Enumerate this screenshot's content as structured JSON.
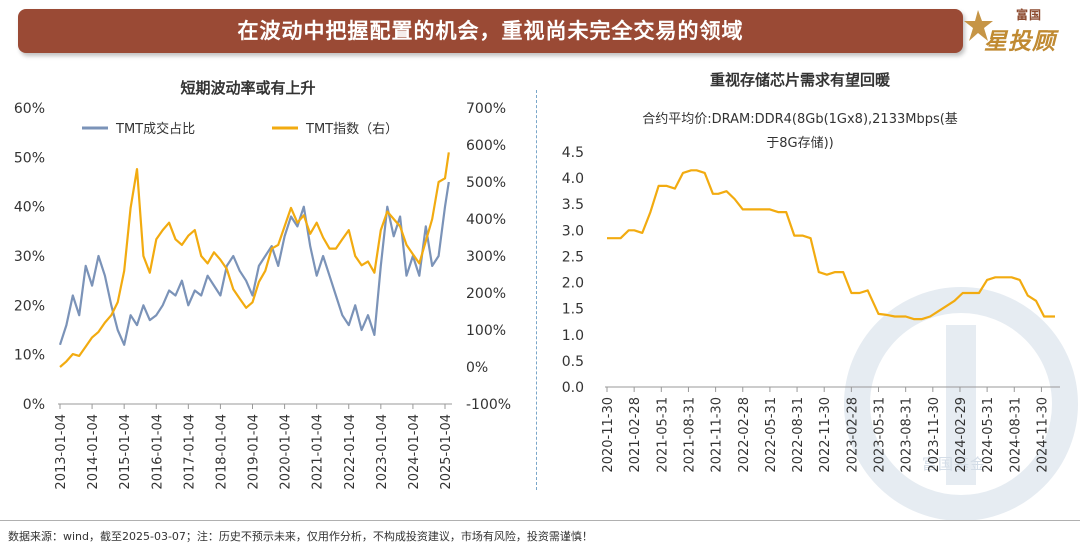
{
  "banner": {
    "title": "在波动中把握配置的机会，重视尚未完全交易的领域"
  },
  "logo": {
    "top_text": "富国",
    "main_text": "星投顾"
  },
  "watermark": {
    "text": "富国基金"
  },
  "colors": {
    "banner": "#9a4a35",
    "blue": "#7b93b8",
    "orange": "#f2ab10",
    "accent": "#c08a32"
  },
  "chart_data": [
    {
      "type": "line",
      "title": "短期波动率或有上升",
      "x_ticks": [
        "2013-01-04",
        "2014-01-04",
        "2015-01-04",
        "2016-01-04",
        "2017-01-04",
        "2018-01-04",
        "2019-01-04",
        "2020-01-04",
        "2021-01-04",
        "2022-01-04",
        "2023-01-04",
        "2024-01-04",
        "2025-01-04"
      ],
      "y_left": {
        "ticks": [
          "0%",
          "10%",
          "20%",
          "30%",
          "40%",
          "50%",
          "60%"
        ],
        "min": 0,
        "max": 60
      },
      "y_right": {
        "ticks": [
          "-100%",
          "0%",
          "100%",
          "200%",
          "300%",
          "400%",
          "500%",
          "600%",
          "700%"
        ],
        "min": -100,
        "max": 700
      },
      "legend_position": "top",
      "series": [
        {
          "name": "TMT成交占比",
          "axis": "left",
          "color": "#7b93b8",
          "x": [
            2013.0,
            2013.2,
            2013.4,
            2013.6,
            2013.8,
            2014.0,
            2014.2,
            2014.4,
            2014.6,
            2014.8,
            2015.0,
            2015.2,
            2015.4,
            2015.6,
            2015.8,
            2016.0,
            2016.2,
            2016.4,
            2016.6,
            2016.8,
            2017.0,
            2017.2,
            2017.4,
            2017.6,
            2017.8,
            2018.0,
            2018.2,
            2018.4,
            2018.6,
            2018.8,
            2019.0,
            2019.2,
            2019.4,
            2019.6,
            2019.8,
            2020.0,
            2020.2,
            2020.4,
            2020.6,
            2020.8,
            2021.0,
            2021.2,
            2021.4,
            2021.6,
            2021.8,
            2022.0,
            2022.2,
            2022.4,
            2022.6,
            2022.8,
            2023.0,
            2023.2,
            2023.4,
            2023.6,
            2023.8,
            2024.0,
            2024.2,
            2024.4,
            2024.6,
            2024.8,
            2025.0,
            2025.12
          ],
          "values": [
            12,
            16,
            22,
            18,
            28,
            24,
            30,
            26,
            20,
            15,
            12,
            18,
            16,
            20,
            17,
            18,
            20,
            23,
            22,
            25,
            20,
            23,
            22,
            26,
            24,
            22,
            28,
            30,
            27,
            25,
            22,
            28,
            30,
            32,
            28,
            34,
            38,
            36,
            40,
            32,
            26,
            30,
            26,
            22,
            18,
            16,
            20,
            15,
            18,
            14,
            28,
            40,
            34,
            38,
            26,
            30,
            26,
            36,
            28,
            30,
            40,
            45
          ]
        },
        {
          "name": "TMT指数（右）",
          "axis": "right",
          "color": "#f2ab10",
          "x": [
            2013.0,
            2013.2,
            2013.4,
            2013.6,
            2013.8,
            2014.0,
            2014.2,
            2014.4,
            2014.6,
            2014.8,
            2015.0,
            2015.2,
            2015.4,
            2015.6,
            2015.8,
            2016.0,
            2016.2,
            2016.4,
            2016.6,
            2016.8,
            2017.0,
            2017.2,
            2017.4,
            2017.6,
            2017.8,
            2018.0,
            2018.2,
            2018.4,
            2018.6,
            2018.8,
            2019.0,
            2019.2,
            2019.4,
            2019.6,
            2019.8,
            2020.0,
            2020.2,
            2020.4,
            2020.6,
            2020.8,
            2021.0,
            2021.2,
            2021.4,
            2021.6,
            2021.8,
            2022.0,
            2022.2,
            2022.4,
            2022.6,
            2022.8,
            2023.0,
            2023.2,
            2023.4,
            2023.6,
            2023.8,
            2024.0,
            2024.2,
            2024.4,
            2024.6,
            2024.8,
            2025.0,
            2025.12
          ],
          "values": [
            0,
            15,
            35,
            30,
            55,
            80,
            95,
            120,
            140,
            175,
            260,
            430,
            535,
            300,
            255,
            345,
            370,
            390,
            345,
            330,
            355,
            370,
            300,
            280,
            310,
            290,
            265,
            210,
            185,
            160,
            175,
            230,
            260,
            320,
            330,
            380,
            430,
            390,
            410,
            360,
            390,
            350,
            320,
            320,
            345,
            370,
            300,
            275,
            285,
            255,
            370,
            420,
            400,
            380,
            330,
            305,
            280,
            340,
            400,
            500,
            510,
            580
          ]
        }
      ]
    },
    {
      "type": "line",
      "title": "重视存储芯片需求有望回暖",
      "subtitle_line1": "合约平均价:DRAM:DDR4(8Gb(1Gx8),2133Mbps(基",
      "subtitle_line2": "于8G存储))",
      "x_ticks": [
        "2020-11-30",
        "2021-02-28",
        "2021-05-31",
        "2021-08-31",
        "2021-11-30",
        "2022-02-28",
        "2022-05-31",
        "2022-08-31",
        "2022-11-30",
        "2023-02-28",
        "2023-05-31",
        "2023-08-31",
        "2023-11-30",
        "2024-02-29",
        "2024-05-31",
        "2024-08-31",
        "2024-11-30"
      ],
      "y": {
        "ticks": [
          "0.0",
          "0.5",
          "1.0",
          "1.5",
          "2.0",
          "2.5",
          "3.0",
          "3.5",
          "4.0",
          "4.5"
        ],
        "min": 0,
        "max": 4.5
      },
      "series": [
        {
          "name": "DRAM DDR4 合约平均价",
          "color": "#f2ab10",
          "x": [
            0,
            0.2,
            0.5,
            0.8,
            1.0,
            1.3,
            1.6,
            1.9,
            2.2,
            2.5,
            2.8,
            3.1,
            3.3,
            3.6,
            3.9,
            4.1,
            4.4,
            4.7,
            5.0,
            5.3,
            5.6,
            6.0,
            6.3,
            6.6,
            6.9,
            7.2,
            7.5,
            7.8,
            8.1,
            8.4,
            8.7,
            9.0,
            9.3,
            9.6,
            10.0,
            10.3,
            10.6,
            11.0,
            11.3,
            11.6,
            11.9,
            12.2,
            12.5,
            12.8,
            13.1,
            13.4,
            13.7,
            14.0,
            14.3,
            14.6,
            14.9,
            15.2,
            15.5,
            15.8,
            16.1,
            16.5
          ],
          "values": [
            2.85,
            2.85,
            2.85,
            3.0,
            3.0,
            2.95,
            3.35,
            3.85,
            3.85,
            3.8,
            4.1,
            4.15,
            4.15,
            4.1,
            3.7,
            3.7,
            3.75,
            3.6,
            3.4,
            3.4,
            3.4,
            3.4,
            3.35,
            3.35,
            2.9,
            2.9,
            2.85,
            2.2,
            2.15,
            2.2,
            2.2,
            1.8,
            1.8,
            1.85,
            1.4,
            1.38,
            1.35,
            1.35,
            1.3,
            1.3,
            1.35,
            1.45,
            1.55,
            1.65,
            1.8,
            1.8,
            1.8,
            2.05,
            2.1,
            2.1,
            2.1,
            2.05,
            1.75,
            1.65,
            1.35,
            1.35
          ]
        }
      ]
    }
  ],
  "footnote": {
    "text": "数据来源：wind，截至2025-03-07；注：历史不预示未来，仅用作分析，不构成投资建议，市场有风险，投资需谨慎！"
  }
}
